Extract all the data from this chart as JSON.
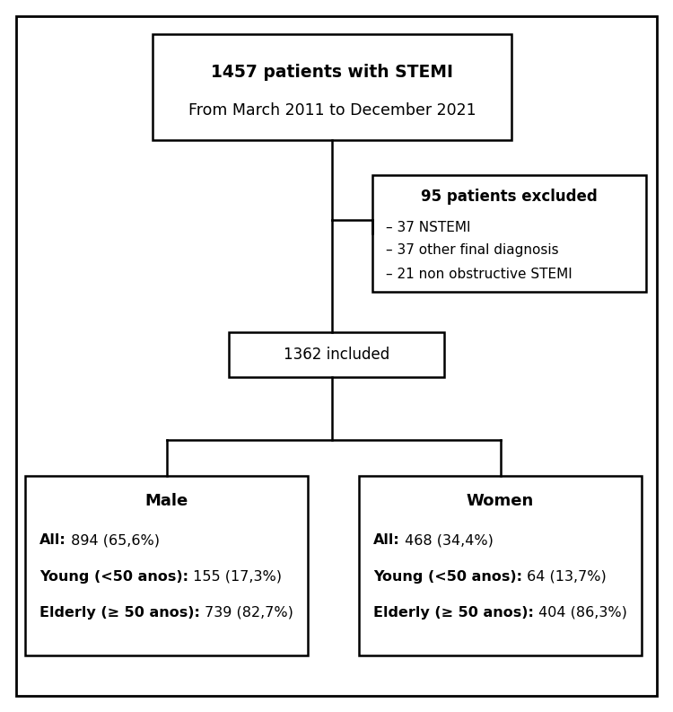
{
  "background_color": "#ffffff",
  "border_color": "#000000",
  "box_top_title": "1457 patients with STEMI",
  "box_top_subtitle": "From March 2011 to December 2021",
  "box_exclude_title": "95 patients excluded",
  "box_exclude_lines": [
    "– 37 NSTEMI",
    "– 37 other final diagnosis",
    "– 21 non obstructive STEMI"
  ],
  "box_middle_text": "1362 included",
  "box_male_title": "Male",
  "box_male_bold": [
    "All:",
    "Young (<50 anos):",
    "Elderly (≥ 50 anos):"
  ],
  "box_male_normal": [
    " 894 (65,6%)",
    " 155 (17,3%)",
    " 739 (82,7%)"
  ],
  "box_women_title": "Women",
  "box_women_bold": [
    "All:",
    "Young (<50 anos):",
    "Elderly (≥ 50 anos):"
  ],
  "box_women_normal": [
    " 468 (34,4%)",
    " 64 (13,7%)",
    " 404 (86,3%)"
  ]
}
